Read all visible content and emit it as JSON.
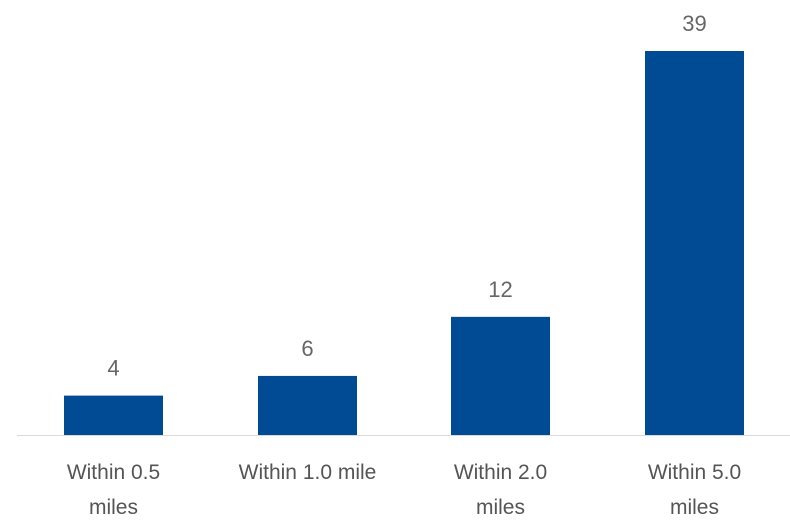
{
  "chart_data": {
    "type": "bar",
    "categories": [
      [
        "Within 0.5",
        "miles"
      ],
      [
        "Within 1.0 mile"
      ],
      [
        "Within 2.0",
        "miles"
      ],
      [
        "Within 5.0",
        "miles"
      ]
    ],
    "values": [
      4,
      6,
      12,
      39
    ],
    "data_labels": [
      "4",
      "6",
      "12",
      "39"
    ],
    "title": "",
    "xlabel": "",
    "ylabel": "",
    "ylim": [
      0,
      39
    ],
    "grid": false,
    "legend": "none",
    "colors": {
      "bar": "#004B93",
      "axis": "#D9D9D9",
      "data_label": "#666666",
      "category_label": "#555555"
    }
  }
}
